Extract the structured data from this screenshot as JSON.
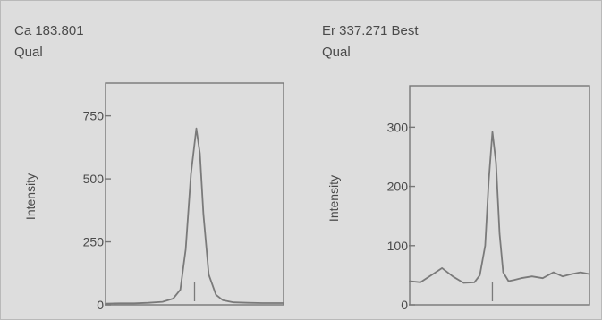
{
  "chart_data": [
    {
      "type": "line",
      "title": "Ca 183.801",
      "subtitle": "Qual",
      "xlabel": "",
      "ylabel": "Intensity",
      "ylim": [
        0,
        880
      ],
      "yticks": [
        0,
        250,
        500,
        750
      ],
      "grid": false,
      "series": [
        {
          "x": [
            0,
            0.08,
            0.16,
            0.24,
            0.32,
            0.38,
            0.42,
            0.45,
            0.48,
            0.51,
            0.53,
            0.55,
            0.58,
            0.62,
            0.66,
            0.72,
            0.8,
            0.88,
            0.96,
            1
          ],
          "values": [
            5,
            6,
            6,
            8,
            12,
            25,
            60,
            220,
            520,
            700,
            600,
            360,
            120,
            40,
            18,
            10,
            8,
            7,
            7,
            7
          ]
        }
      ],
      "line_marker_x": 0.5
    },
    {
      "type": "line",
      "title": "Er 337.271 Best",
      "subtitle": "Qual",
      "xlabel": "",
      "ylabel": "Intensity",
      "ylim": [
        0,
        370
      ],
      "yticks": [
        0,
        100,
        200,
        300
      ],
      "grid": false,
      "series": [
        {
          "x": [
            0,
            0.06,
            0.12,
            0.18,
            0.24,
            0.3,
            0.36,
            0.39,
            0.42,
            0.44,
            0.46,
            0.48,
            0.5,
            0.52,
            0.55,
            0.58,
            0.62,
            0.68,
            0.74,
            0.8,
            0.85,
            0.9,
            0.95,
            1
          ],
          "values": [
            40,
            38,
            50,
            62,
            48,
            37,
            38,
            50,
            100,
            210,
            292,
            240,
            120,
            55,
            40,
            42,
            45,
            48,
            45,
            55,
            48,
            52,
            55,
            52
          ]
        }
      ],
      "line_marker_x": 0.46
    }
  ]
}
